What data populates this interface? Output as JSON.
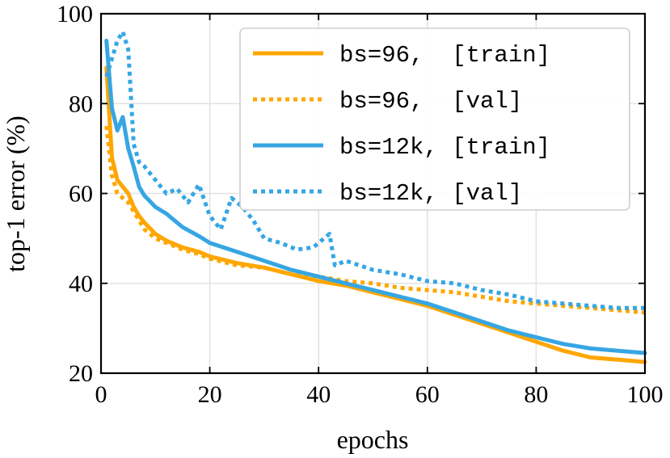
{
  "chart_data": {
    "type": "line",
    "xlabel": "epochs",
    "ylabel": "top-1 error (%)",
    "xlim": [
      0,
      100
    ],
    "ylim": [
      20,
      100
    ],
    "xticks": [
      0,
      20,
      40,
      60,
      80,
      100
    ],
    "yticks": [
      20,
      40,
      60,
      80,
      100
    ],
    "grid": true,
    "legend_position": "top-right",
    "series": [
      {
        "name": "bs=96,  [train]",
        "color": "#ffa600",
        "style": "solid",
        "x": [
          1,
          2,
          3,
          4,
          5,
          6,
          7,
          8,
          10,
          12,
          15,
          18,
          20,
          25,
          30,
          35,
          40,
          45,
          50,
          55,
          60,
          65,
          70,
          75,
          80,
          85,
          90,
          95,
          100
        ],
        "y": [
          88,
          68,
          63,
          61.5,
          60,
          57,
          55,
          53.5,
          51,
          49.5,
          48,
          47,
          46,
          44.5,
          43.5,
          42,
          40.5,
          39.5,
          38,
          36.5,
          35,
          33,
          31,
          29,
          27,
          25,
          23.5,
          23,
          22.5
        ]
      },
      {
        "name": "bs=96,  [val]",
        "color": "#ffa600",
        "style": "dotted",
        "x": [
          1,
          2,
          3,
          4,
          5,
          6,
          7,
          8,
          10,
          12,
          15,
          18,
          20,
          25,
          30,
          35,
          40,
          45,
          50,
          55,
          60,
          65,
          70,
          75,
          80,
          85,
          90,
          95,
          100
        ],
        "y": [
          75,
          64,
          60,
          59,
          58,
          56,
          54,
          52,
          50,
          49,
          47.5,
          46.5,
          45.5,
          44,
          43.5,
          42,
          41.5,
          40.5,
          40,
          39,
          38.5,
          38,
          37,
          36,
          35.5,
          35,
          34.5,
          34,
          33.5
        ]
      },
      {
        "name": "bs=12k, [train]",
        "color": "#36a6e3",
        "style": "solid",
        "x": [
          1,
          2,
          3,
          4,
          5,
          6,
          7,
          8,
          10,
          12,
          15,
          18,
          20,
          25,
          30,
          35,
          40,
          45,
          50,
          55,
          60,
          65,
          70,
          75,
          80,
          85,
          90,
          95,
          100
        ],
        "y": [
          94,
          79,
          74,
          77,
          70,
          66,
          61.5,
          59.5,
          57,
          55.5,
          52.5,
          50.5,
          49,
          47,
          45,
          43,
          41.5,
          40,
          38.5,
          37,
          35.5,
          33.5,
          31.5,
          29.5,
          28,
          26.5,
          25.5,
          25,
          24.5
        ]
      },
      {
        "name": "bs=12k, [val]",
        "color": "#36a6e3",
        "style": "dotted",
        "x": [
          1,
          2,
          3,
          4,
          5,
          6,
          7,
          8,
          10,
          12,
          14,
          16,
          18,
          20,
          22,
          24,
          26,
          28,
          30,
          33,
          36,
          39,
          42,
          43,
          45,
          50,
          55,
          60,
          65,
          70,
          75,
          80,
          85,
          90,
          95,
          100
        ],
        "y": [
          86,
          90,
          94,
          96,
          92,
          71,
          67,
          66,
          63,
          60,
          61,
          58,
          62,
          55,
          52,
          59,
          57,
          54,
          50,
          49,
          47.5,
          48,
          51,
          44,
          45,
          43,
          42,
          40.5,
          40,
          38.5,
          37.5,
          36,
          35.5,
          35,
          34.5,
          34.5
        ]
      }
    ]
  }
}
